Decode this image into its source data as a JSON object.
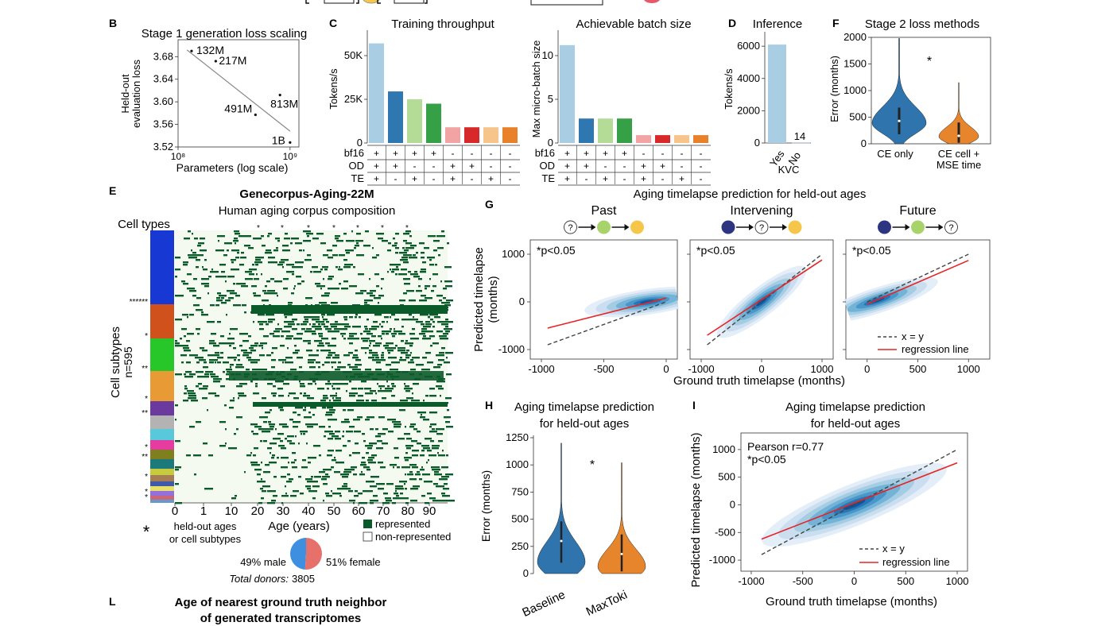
{
  "panel_letters": {
    "B": "B",
    "C": "C",
    "D": "D",
    "E": "E",
    "F": "F",
    "G": "G",
    "H": "H",
    "I": "I",
    "L": "L"
  },
  "colors": {
    "lightblue": "#a9cde3",
    "blue": "#2e77b0",
    "lightgreen": "#b5dc96",
    "green": "#36a046",
    "pink": "#f2a3a3",
    "red": "#d7282a",
    "peach": "#f7c48b",
    "orange": "#e9812a",
    "violin_blue": "#2f74ac",
    "violin_orange": "#e7852d",
    "dark_green": "#0b5a2a",
    "heat_bg": "#f4faf0",
    "regression": "#e82323",
    "kde_dark": "#1f5f9f",
    "circle_navy": "#2d3580",
    "circle_green": "#a8d26a",
    "circle_yellow": "#f6c64a"
  },
  "chart_data": [
    {
      "id": "B",
      "type": "scatter",
      "title": "Stage 1 generation loss scaling",
      "xlabel": "Parameters (log scale)",
      "ylabel_lines": [
        "Held-out",
        "evaluation loss"
      ],
      "xscale": "log",
      "xlim": [
        100000000,
        1200000000
      ],
      "ylim": [
        3.52,
        3.71
      ],
      "xticks": [
        "10⁸",
        "10⁹"
      ],
      "yticks": [
        "3.68",
        "3.64",
        "3.60",
        "3.56",
        "3.52"
      ],
      "points": [
        {
          "label": "132M",
          "x": 132000000,
          "y": 3.69
        },
        {
          "label": "217M",
          "x": 217000000,
          "y": 3.672
        },
        {
          "label": "491M",
          "x": 491000000,
          "y": 3.577
        },
        {
          "label": "813M",
          "x": 813000000,
          "y": 3.612
        },
        {
          "label": "1B",
          "x": 1000000000,
          "y": 3.528
        }
      ],
      "fit_line": {
        "x": [
          120000000,
          1000000000
        ],
        "y": [
          3.692,
          3.548
        ]
      }
    },
    {
      "id": "C1",
      "type": "bar",
      "title": "Training throughput",
      "ylabel": "Tokens/s",
      "yticks": [
        "0",
        "25K",
        "50K"
      ],
      "ylim": [
        0,
        60000
      ],
      "values": [
        57000,
        29500,
        25000,
        22500,
        9000,
        9000,
        9000,
        9000
      ],
      "colors": [
        "lightblue",
        "blue",
        "lightgreen",
        "green",
        "pink",
        "red",
        "peach",
        "orange"
      ]
    },
    {
      "id": "C2",
      "type": "bar",
      "title": "Achievable batch size",
      "ylabel": "Max micro-batch size",
      "yticks": [
        "0",
        "5",
        "10"
      ],
      "ylim": [
        0,
        12
      ],
      "values": [
        11.2,
        2.8,
        2.8,
        2.8,
        0.9,
        0.9,
        0.9,
        0.9
      ],
      "colors": [
        "lightblue",
        "blue",
        "lightgreen",
        "green",
        "pink",
        "red",
        "peach",
        "orange"
      ]
    },
    {
      "id": "C_table",
      "type": "table",
      "rows": [
        {
          "name": "bf16",
          "marks": [
            "+",
            "+",
            "+",
            "+",
            "-",
            "-",
            "-",
            "-"
          ]
        },
        {
          "name": "OD",
          "marks": [
            "+",
            "+",
            "-",
            "-",
            "+",
            "+",
            "-",
            "-"
          ]
        },
        {
          "name": "TE",
          "marks": [
            "+",
            "-",
            "+",
            "-",
            "+",
            "-",
            "+",
            "-"
          ]
        }
      ]
    },
    {
      "id": "D",
      "type": "bar",
      "title": "Inference",
      "ylabel": "Tokens/s",
      "xlabel": "KVC",
      "categories": [
        "Yes",
        "No"
      ],
      "values": [
        6100,
        14
      ],
      "value_label": "14",
      "yticks": [
        "0",
        "2000",
        "4000",
        "6000"
      ],
      "ylim": [
        0,
        6500
      ]
    },
    {
      "id": "F",
      "type": "violin",
      "title": "Stage 2 loss methods",
      "ylabel": "Error (months)",
      "categories": [
        "CE only",
        "CE cell +",
        "MSE time"
      ],
      "yticks": [
        "0",
        "500",
        "1000",
        "1500",
        "2000"
      ],
      "ylim": [
        0,
        2000
      ],
      "significance": "*",
      "series": [
        {
          "name": "CE only",
          "median": 430,
          "max": 1980
        },
        {
          "name": "CE cell + MSE time",
          "median": 150,
          "max": 1150
        }
      ]
    },
    {
      "id": "E",
      "type": "heatmap",
      "title": "Genecorpus-Aging-22M",
      "subtitle": "Human aging corpus composition",
      "row_label": "Cell types",
      "ylabel": "Cell subtypes",
      "ylabel_n": "n=595",
      "xlabel": "Age (years)",
      "xticks": [
        "0",
        "1",
        "10",
        "20",
        "30",
        "40",
        "50",
        "60",
        "70",
        "80",
        "90"
      ],
      "legend": {
        "represented": "represented",
        "non_represented": "non-represented"
      },
      "footnote_lines": [
        "held-out ages",
        "or cell subtypes"
      ],
      "star_symbol": "*",
      "donors": {
        "male": "49% male",
        "female": "51% female",
        "male_pct": 49,
        "total_label": "Total donors:",
        "total": "3805"
      }
    },
    {
      "id": "G",
      "type": "scatter",
      "title": "Aging timelapse prediction for held-out ages",
      "ylabel_lines": [
        "Predicted timelapse",
        "(months)"
      ],
      "xlabel": "Ground truth timelapse (months)",
      "subplots": [
        {
          "name": "Past",
          "p_text": "*p<0.05",
          "xticks": [
            "-1000",
            "-500",
            "0"
          ],
          "xlim": [
            -1000,
            0
          ],
          "ylim": [
            -1200,
            1300
          ],
          "identity": [
            [
              -950,
              -900
            ],
            [
              0,
              0
            ]
          ],
          "regression": [
            [
              -950,
              -550
            ],
            [
              0,
              80
            ]
          ],
          "kde_center": [
            -150,
            0
          ],
          "circles": [
            "?",
            "green",
            "yellow"
          ]
        },
        {
          "name": "Intervening",
          "p_text": "*p<0.05",
          "xticks": [
            "-1000",
            "0",
            "1000"
          ],
          "xlim": [
            -1000,
            1000
          ],
          "ylim": [
            -1200,
            1300
          ],
          "identity": [
            [
              -900,
              -900
            ],
            [
              1000,
              1000
            ]
          ],
          "regression": [
            [
              -900,
              -700
            ],
            [
              1000,
              880
            ]
          ],
          "kde_center": [
            0,
            0
          ],
          "circles": [
            "navy",
            "?",
            "yellow"
          ]
        },
        {
          "name": "Future",
          "p_text": "*p<0.05",
          "xticks": [
            "0",
            "500",
            "1000"
          ],
          "xlim": [
            -100,
            1100
          ],
          "ylim": [
            -1200,
            1300
          ],
          "identity": [
            [
              0,
              0
            ],
            [
              1000,
              1000
            ]
          ],
          "regression": [
            [
              0,
              -50
            ],
            [
              1000,
              870
            ]
          ],
          "kde_center": [
            100,
            30
          ],
          "circles": [
            "navy",
            "green",
            "?"
          ],
          "legend": [
            "x = y",
            "regression line"
          ]
        }
      ],
      "yticks": [
        "1000",
        "0",
        "-1000"
      ]
    },
    {
      "id": "H",
      "type": "violin",
      "title_lines": [
        "Aging timelapse prediction",
        "for held-out ages"
      ],
      "ylabel": "Error (months)",
      "categories": [
        "Baseline",
        "MaxToki"
      ],
      "yticks": [
        "0",
        "250",
        "500",
        "750",
        "1000",
        "1250"
      ],
      "ylim": [
        0,
        1250
      ],
      "significance": "*",
      "series": [
        {
          "name": "Baseline",
          "median": 300,
          "max": 1200
        },
        {
          "name": "MaxToki",
          "median": 180,
          "max": 1020
        }
      ]
    },
    {
      "id": "I",
      "type": "scatter",
      "title_lines": [
        "Aging timelapse prediction",
        "for held-out ages"
      ],
      "ylabel": "Predicted timelapse (months)",
      "xlabel": "Ground truth timelapse (months)",
      "pearson": "Pearson r=0.77",
      "p_text": "*p<0.05",
      "xticks": [
        "-1000",
        "-500",
        "0",
        "500",
        "1000"
      ],
      "yticks": [
        "1000",
        "500",
        "0",
        "-500",
        "-1000"
      ],
      "xlim": [
        -1100,
        1100
      ],
      "ylim": [
        -1200,
        1300
      ],
      "identity": [
        [
          -900,
          -900
        ],
        [
          1000,
          1000
        ]
      ],
      "regression": [
        [
          -900,
          -620
        ],
        [
          1000,
          760
        ]
      ],
      "legend": [
        "x = y",
        "regression line"
      ]
    },
    {
      "id": "L",
      "type": "heatmap",
      "title_lines": [
        "Age of nearest ground truth neighbor",
        "of generated transcriptomes"
      ]
    }
  ]
}
